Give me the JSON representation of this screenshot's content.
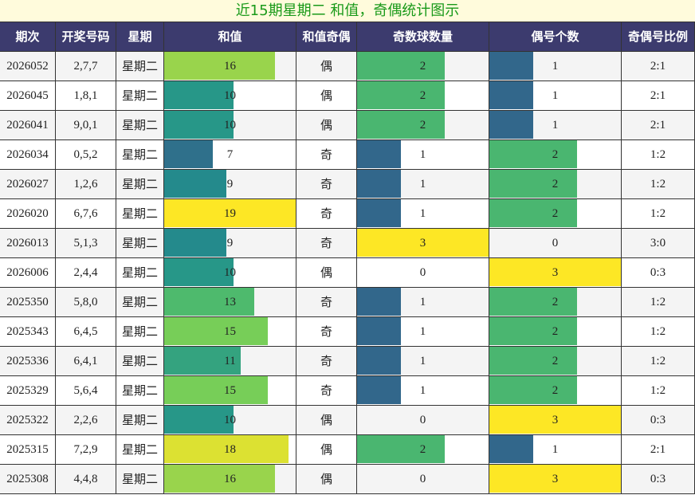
{
  "title": "近15期星期二 和值，奇偶统计图示",
  "table": {
    "headers": [
      "期次",
      "开奖号码",
      "星期",
      "和值",
      "和值奇偶",
      "奇数球数量",
      "偶号个数",
      "奇偶号比例"
    ],
    "rows": [
      [
        "2026052",
        "2,7,7",
        "星期二",
        16,
        "偶",
        2,
        1,
        "2:1"
      ],
      [
        "2026045",
        "1,8,1",
        "星期二",
        10,
        "偶",
        2,
        1,
        "2:1"
      ],
      [
        "2026041",
        "9,0,1",
        "星期二",
        10,
        "偶",
        2,
        1,
        "2:1"
      ],
      [
        "2026034",
        "0,5,2",
        "星期二",
        7,
        "奇",
        1,
        2,
        "1:2"
      ],
      [
        "2026027",
        "1,2,6",
        "星期二",
        9,
        "奇",
        1,
        2,
        "1:2"
      ],
      [
        "2026020",
        "6,7,6",
        "星期二",
        19,
        "奇",
        1,
        2,
        "1:2"
      ],
      [
        "2026013",
        "5,1,3",
        "星期二",
        9,
        "奇",
        3,
        0,
        "3:0"
      ],
      [
        "2026006",
        "2,4,4",
        "星期二",
        10,
        "偶",
        0,
        3,
        "0:3"
      ],
      [
        "2025350",
        "5,8,0",
        "星期二",
        13,
        "奇",
        1,
        2,
        "1:2"
      ],
      [
        "2025343",
        "6,4,5",
        "星期二",
        15,
        "奇",
        1,
        2,
        "1:2"
      ],
      [
        "2025336",
        "6,4,1",
        "星期二",
        11,
        "奇",
        1,
        2,
        "1:2"
      ],
      [
        "2025329",
        "5,6,4",
        "星期二",
        15,
        "奇",
        1,
        2,
        "1:2"
      ],
      [
        "2025322",
        "2,2,6",
        "星期二",
        10,
        "偶",
        0,
        3,
        "0:3"
      ],
      [
        "2025315",
        "7,2,9",
        "星期二",
        18,
        "偶",
        2,
        1,
        "2:1"
      ],
      [
        "2025308",
        "4,4,8",
        "星期二",
        16,
        "偶",
        0,
        3,
        "0:3"
      ]
    ]
  }
}
